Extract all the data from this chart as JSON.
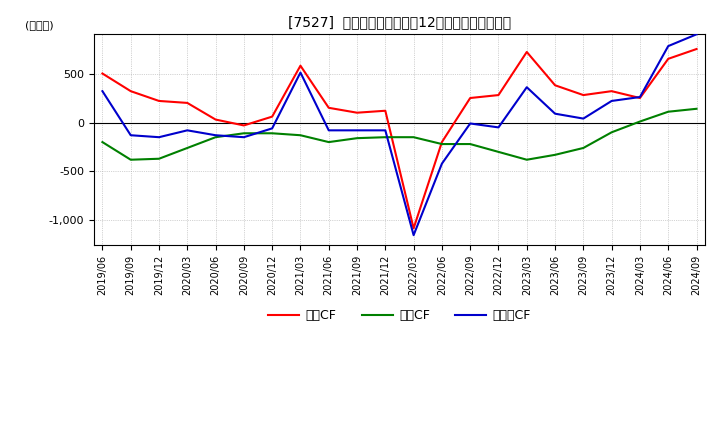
{
  "title": "[7527]  キャッシュフローの12か月移動合計の推移",
  "ylabel": "(百万円)",
  "dates": [
    "2019/06",
    "2019/09",
    "2019/12",
    "2020/03",
    "2020/06",
    "2020/09",
    "2020/12",
    "2021/03",
    "2021/06",
    "2021/09",
    "2021/12",
    "2022/03",
    "2022/06",
    "2022/09",
    "2022/12",
    "2023/03",
    "2023/06",
    "2023/09",
    "2023/12",
    "2024/03",
    "2024/06",
    "2024/09"
  ],
  "operating_cf": [
    500,
    320,
    220,
    200,
    30,
    -30,
    60,
    580,
    150,
    100,
    120,
    -1080,
    -200,
    250,
    280,
    720,
    380,
    280,
    320,
    250,
    650,
    750
  ],
  "investing_cf": [
    -200,
    -380,
    -370,
    -260,
    -150,
    -110,
    -110,
    -130,
    -200,
    -160,
    -150,
    -150,
    -220,
    -220,
    -300,
    -380,
    -330,
    -260,
    -100,
    10,
    110,
    140
  ],
  "free_cf": [
    320,
    -130,
    -150,
    -80,
    -130,
    -150,
    -60,
    510,
    -80,
    -80,
    -80,
    -1150,
    -420,
    -10,
    -50,
    360,
    90,
    40,
    220,
    260,
    780,
    900
  ],
  "operating_color": "#ff0000",
  "investing_color": "#008000",
  "free_color": "#0000cc",
  "ylim": [
    -1250,
    900
  ],
  "yticks": [
    -1000,
    -500,
    0,
    500
  ],
  "background_color": "#ffffff",
  "plot_bg_color": "#ffffff",
  "grid_color": "#aaaaaa",
  "legend_labels": [
    "営業CF",
    "投資CF",
    "フリーCF"
  ]
}
